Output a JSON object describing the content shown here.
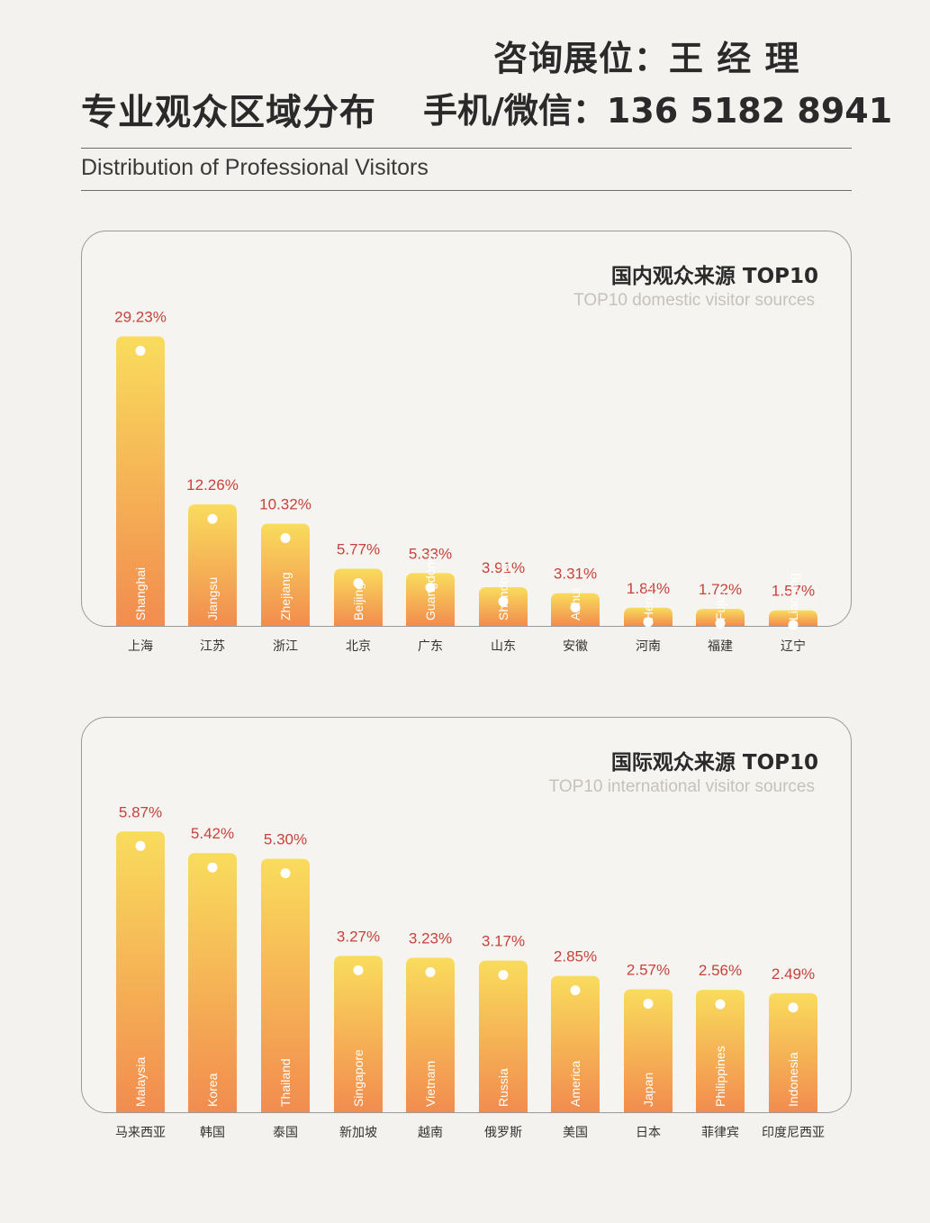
{
  "header": {
    "contact_line1": "咨询展位：王 经 理",
    "title": "专业观众区域分布",
    "contact_line2": "手机/微信：136 5182 8941",
    "subtitle": "Distribution of Professional Visitors"
  },
  "colors": {
    "bar_top": "#f9dc5c",
    "bar_bottom": "#f28c4f",
    "value_text": "#c8413a"
  },
  "domestic": {
    "title": "国内观众来源 TOP10",
    "subtitle": "TOP10 domestic visitor sources"
  },
  "international": {
    "title": "国际观众来源 TOP10",
    "subtitle": "TOP10 international visitor sources"
  },
  "chart_data": [
    {
      "type": "bar",
      "title": "国内观众来源 TOP10",
      "subtitle": "TOP10 domestic visitor sources",
      "categories": [
        "上海",
        "江苏",
        "浙江",
        "北京",
        "广东",
        "山东",
        "安徽",
        "河南",
        "福建",
        "辽宁"
      ],
      "categories_en": [
        "Shanghai",
        "Jiangsu",
        "Zhejiang",
        "Beijing",
        "Guangdong",
        "Shandong",
        "Anhui",
        "Henan",
        "Fujian",
        "Liaoning"
      ],
      "values": [
        29.23,
        12.26,
        10.32,
        5.77,
        5.33,
        3.91,
        3.31,
        1.84,
        1.72,
        1.57
      ],
      "value_labels": [
        "29.23%",
        "12.26%",
        "10.32%",
        "5.77%",
        "5.33%",
        "3.91%",
        "3.31%",
        "1.84%",
        "1.72%",
        "1.57%"
      ],
      "grid": false
    },
    {
      "type": "bar",
      "title": "国际观众来源 TOP10",
      "subtitle": "TOP10 international visitor sources",
      "categories": [
        "马来西亚",
        "韩国",
        "泰国",
        "新加坡",
        "越南",
        "俄罗斯",
        "美国",
        "日本",
        "菲律宾",
        "印度尼西亚"
      ],
      "categories_en": [
        "Malaysia",
        "Korea",
        "Thailand",
        "Singapore",
        "Vietnam",
        "Russia",
        "America",
        "Japan",
        "Philippines",
        "Indonesia"
      ],
      "values": [
        5.87,
        5.42,
        5.3,
        3.27,
        3.23,
        3.17,
        2.85,
        2.57,
        2.56,
        2.49
      ],
      "value_labels": [
        "5.87%",
        "5.42%",
        "5.30%",
        "3.27%",
        "3.23%",
        "3.17%",
        "2.85%",
        "2.57%",
        "2.56%",
        "2.49%"
      ],
      "grid": false
    }
  ]
}
